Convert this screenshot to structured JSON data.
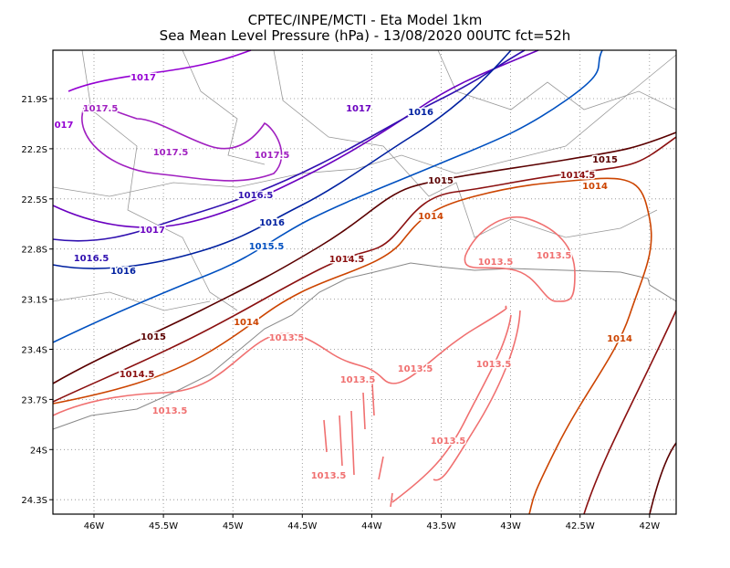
{
  "title": {
    "line1": "CPTEC/INPE/MCTI -  Eta Model 1km",
    "line2": "Sea Mean Level Pressure (hPa) - 13/08/2020 00UTC fct=52h"
  },
  "lon_labels": [
    "46W",
    "45.5W",
    "45W",
    "44.5W",
    "44W",
    "43.5W",
    "43W",
    "42.5W",
    "42W"
  ],
  "lat_labels": [
    "21.9S",
    "22.2S",
    "22.5S",
    "22.8S",
    "23.1S",
    "23.4S",
    "23.7S",
    "24S",
    "24.3S"
  ],
  "contour_labels": [
    {
      "text": "1017",
      "color": "#9400d3"
    },
    {
      "text": "1017.5",
      "color": "#a020c0"
    },
    {
      "text": "017",
      "color": "#9400d3"
    },
    {
      "text": "1017.5",
      "color": "#a020c0"
    },
    {
      "text": "1017.5",
      "color": "#a020c0"
    },
    {
      "text": "1017",
      "color": "#6a00c0"
    },
    {
      "text": "1016",
      "color": "#0020a0"
    },
    {
      "text": "1016.5",
      "color": "#3010b0"
    },
    {
      "text": "1017",
      "color": "#6a00c0"
    },
    {
      "text": "1016",
      "color": "#0020a0"
    },
    {
      "text": "1015.5",
      "color": "#0050c0"
    },
    {
      "text": "1016.5",
      "color": "#3010b0"
    },
    {
      "text": "1016",
      "color": "#0020a0"
    },
    {
      "text": "1015",
      "color": "#5a0000"
    },
    {
      "text": "1015",
      "color": "#5a0000"
    },
    {
      "text": "1014.5",
      "color": "#8b1010"
    },
    {
      "text": "1014",
      "color": "#cc4400"
    },
    {
      "text": "1014",
      "color": "#cc4400"
    },
    {
      "text": "1014.5",
      "color": "#8b1010"
    },
    {
      "text": "1013.5",
      "color": "#f07070"
    },
    {
      "text": "1013.5",
      "color": "#f07070"
    },
    {
      "text": "1014",
      "color": "#cc4400"
    },
    {
      "text": "1015",
      "color": "#5a0000"
    },
    {
      "text": "1014.5",
      "color": "#8b1010"
    },
    {
      "text": "1013.5",
      "color": "#f07070"
    },
    {
      "text": "1013.5",
      "color": "#f07070"
    },
    {
      "text": "1013.5",
      "color": "#f07070"
    },
    {
      "text": "1013.5",
      "color": "#f07070"
    },
    {
      "text": "1013.5",
      "color": "#f07070"
    },
    {
      "text": "1014",
      "color": "#cc4400"
    },
    {
      "text": "1013.5",
      "color": "#f07070"
    },
    {
      "text": "1013.5",
      "color": "#f07070"
    }
  ]
}
